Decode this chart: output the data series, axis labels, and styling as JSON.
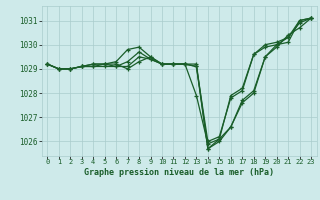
{
  "xlabel": "Graphe pression niveau de la mer (hPa)",
  "xlim": [
    -0.5,
    23.5
  ],
  "ylim": [
    1025.4,
    1031.6
  ],
  "yticks": [
    1026,
    1027,
    1028,
    1029,
    1030,
    1031
  ],
  "xticks": [
    0,
    1,
    2,
    3,
    4,
    5,
    6,
    7,
    8,
    9,
    10,
    11,
    12,
    13,
    14,
    15,
    16,
    17,
    18,
    19,
    20,
    21,
    22,
    23
  ],
  "xticklabels": [
    "0",
    "1",
    "2",
    "3",
    "4",
    "5",
    "6",
    "7",
    "8",
    "9",
    "10",
    "11",
    "12",
    "13",
    "14",
    "15",
    "16",
    "17",
    "18",
    "19",
    "20",
    "21",
    "22",
    "23"
  ],
  "bg_color": "#ceeaea",
  "grid_color": "#aacccc",
  "line_color": "#1a5e2a",
  "line_width": 0.9,
  "marker": "+",
  "marker_size": 3.5,
  "series": [
    [
      1029.2,
      1029.0,
      1029.0,
      1029.1,
      1029.1,
      1029.1,
      1029.1,
      1029.3,
      1029.7,
      1029.4,
      1029.2,
      1029.2,
      1029.2,
      1029.2,
      1025.7,
      1026.0,
      1026.6,
      1027.6,
      1028.0,
      1029.5,
      1029.9,
      1030.4,
      1030.7,
      1031.1
    ],
    [
      1029.2,
      1029.0,
      1029.0,
      1029.1,
      1029.2,
      1029.2,
      1029.2,
      1029.0,
      1029.3,
      1029.5,
      1029.2,
      1029.2,
      1029.2,
      1029.1,
      1026.0,
      1026.2,
      1027.8,
      1028.1,
      1029.6,
      1029.9,
      1030.0,
      1030.1,
      1031.0,
      1031.1
    ],
    [
      1029.2,
      1029.0,
      1029.0,
      1029.1,
      1029.1,
      1029.2,
      1029.3,
      1029.8,
      1029.9,
      1029.5,
      1029.2,
      1029.2,
      1029.2,
      1029.1,
      1025.7,
      1026.1,
      1026.6,
      1027.7,
      1028.1,
      1029.5,
      1030.0,
      1030.3,
      1030.9,
      1031.1
    ],
    [
      1029.2,
      1029.0,
      1029.0,
      1029.1,
      1029.2,
      1029.2,
      1029.1,
      1029.1,
      1029.5,
      1029.4,
      1029.2,
      1029.2,
      1029.2,
      1027.9,
      1025.9,
      1026.1,
      1027.9,
      1028.2,
      1029.6,
      1030.0,
      1030.1,
      1030.3,
      1031.0,
      1031.1
    ]
  ]
}
